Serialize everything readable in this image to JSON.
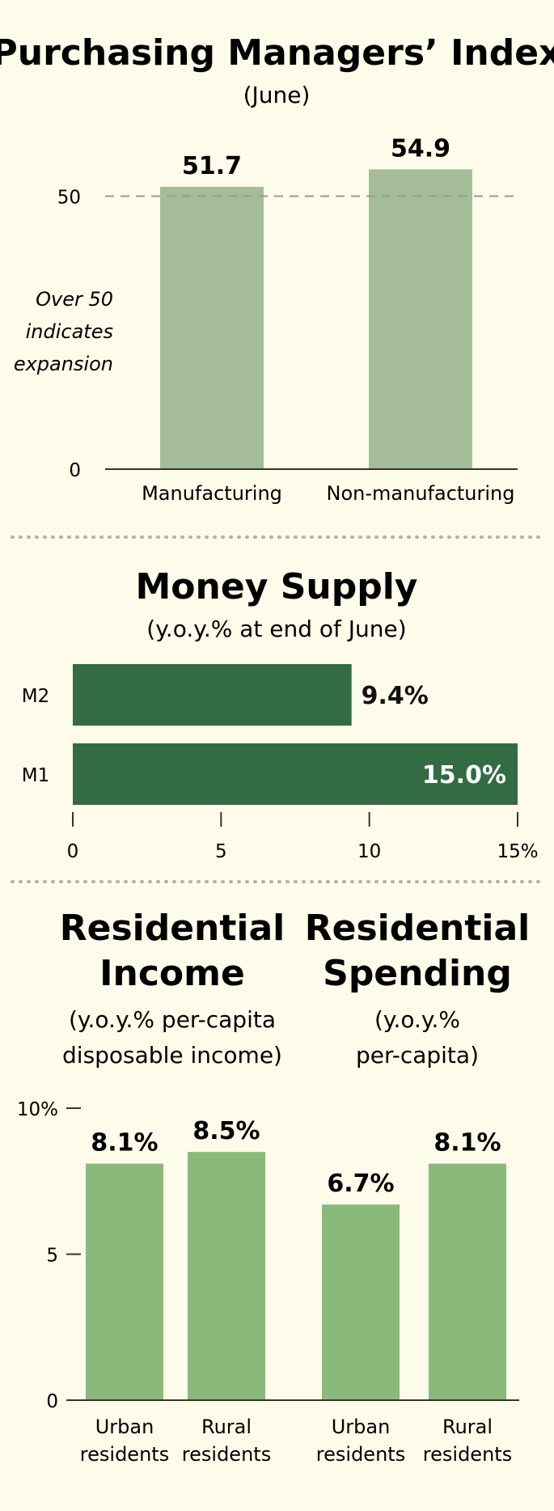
{
  "charts": [
    {
      "type": "bar",
      "title": "Purchasing Managers’ Index",
      "subtitle": "(June)",
      "categories": [
        "Manufacturing",
        "Non-manufacturing"
      ],
      "values": [
        51.7,
        54.9
      ],
      "value_labels": [
        "51.7",
        "54.9"
      ],
      "yticks": [
        {
          "value": 0,
          "label": "0"
        },
        {
          "value": 50,
          "label": "50"
        }
      ],
      "reference_line": 50,
      "annotation": [
        "Over 50",
        "indicates",
        "expansion"
      ],
      "ylim": [
        0,
        60
      ],
      "bar_color": "#a4bc98"
    },
    {
      "type": "bar",
      "orientation": "horizontal",
      "title": "Money Supply",
      "subtitle": "(y.o.y.% at end of June)",
      "categories": [
        "M2",
        "M1"
      ],
      "values": [
        9.4,
        15.0
      ],
      "value_labels": [
        "9.4%",
        "15.0%"
      ],
      "xticks": [
        {
          "value": 0,
          "label": "0"
        },
        {
          "value": 5,
          "label": "5"
        },
        {
          "value": 10,
          "label": "10"
        },
        {
          "value": 15,
          "label": "15%"
        }
      ],
      "xlim": [
        0,
        15
      ],
      "bar_color": "#336b43"
    },
    {
      "type": "bar",
      "groups": [
        {
          "title": [
            "Residential",
            "Income"
          ],
          "subtitle": [
            "(y.o.y.% per-capita",
            "disposable income)"
          ]
        },
        {
          "title": [
            "Residential",
            "Spending"
          ],
          "subtitle": [
            "(y.o.y.%",
            "per-capita)"
          ]
        }
      ],
      "categories": [
        [
          "Urban",
          "residents"
        ],
        [
          "Rural",
          "residents"
        ],
        [
          "Urban",
          "residents"
        ],
        [
          "Rural",
          "residents"
        ]
      ],
      "values": [
        8.1,
        8.5,
        6.7,
        8.1
      ],
      "value_labels": [
        "8.1%",
        "8.5%",
        "6.7%",
        "8.1%"
      ],
      "yticks": [
        {
          "value": 0,
          "label": "0"
        },
        {
          "value": 5,
          "label": "5"
        },
        {
          "value": 10,
          "label": "10%"
        }
      ],
      "ylim": [
        0,
        10
      ],
      "bar_color": "#89ba7b"
    }
  ],
  "colors": {
    "background": "#fdfbe9",
    "text": "#111111",
    "divider": "#b2b2a8",
    "axis": "#333333",
    "refline": "#999999"
  }
}
